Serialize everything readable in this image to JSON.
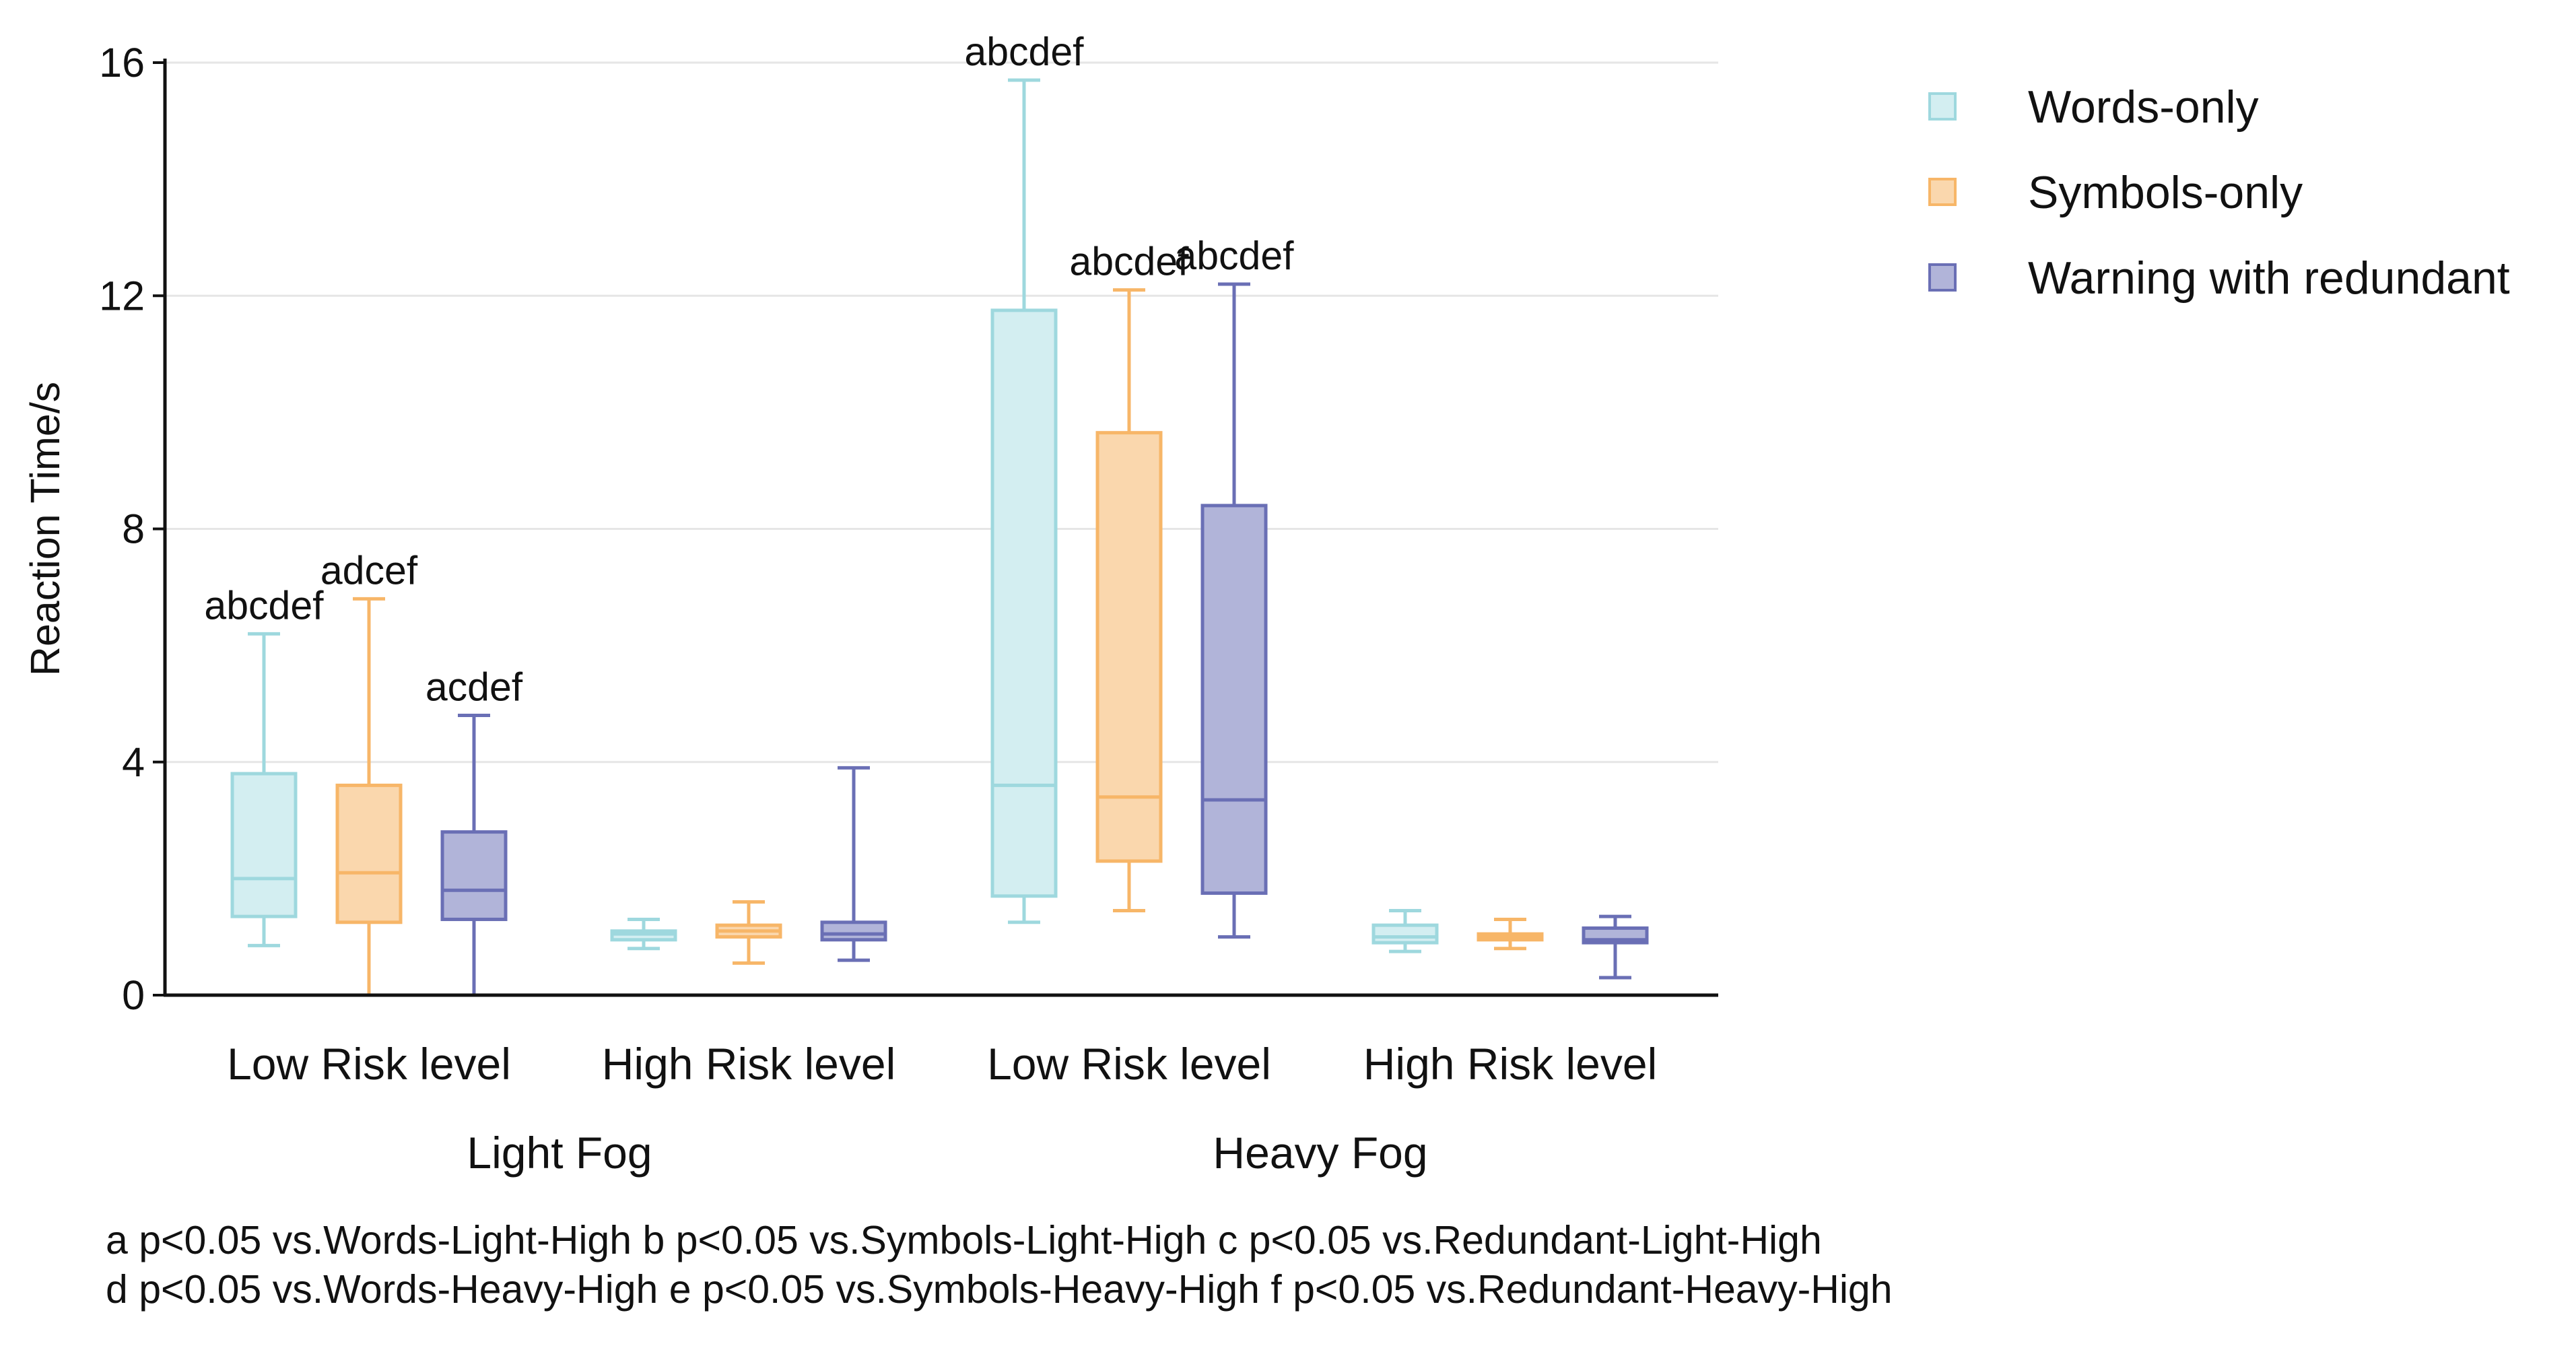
{
  "chart_data": {
    "type": "box",
    "ylabel": "Reaction Time/s",
    "xlabel": "",
    "ylim": [
      0,
      16
    ],
    "yticks": [
      0,
      4,
      8,
      12,
      16
    ],
    "grid": "horizontal",
    "legend_position": "top-right",
    "categories": [
      "Low Risk level",
      "High Risk level",
      "Low Risk level",
      "High Risk level"
    ],
    "groups": [
      {
        "label": "Light Fog",
        "categories": [
          0,
          1
        ]
      },
      {
        "label": "Heavy Fog",
        "categories": [
          2,
          3
        ]
      }
    ],
    "series": [
      {
        "name": "Words-only",
        "stroke": "#9ED8DE",
        "fill": "#D3EEF1",
        "boxes": [
          {
            "min": 0.85,
            "q1": 1.35,
            "median": 2.0,
            "q3": 3.8,
            "max": 6.2,
            "annotation": "abcdef"
          },
          {
            "min": 0.8,
            "q1": 0.95,
            "median": 1.05,
            "q3": 1.1,
            "max": 1.3,
            "annotation": ""
          },
          {
            "min": 1.25,
            "q1": 1.7,
            "median": 3.6,
            "q3": 11.75,
            "max": 15.7,
            "annotation": "abcdef"
          },
          {
            "min": 0.75,
            "q1": 0.9,
            "median": 1.0,
            "q3": 1.2,
            "max": 1.45,
            "annotation": ""
          }
        ]
      },
      {
        "name": "Symbols-only",
        "stroke": "#F7B668",
        "fill": "#FAD7AD",
        "boxes": [
          {
            "min": 0.0,
            "q1": 1.25,
            "median": 2.1,
            "q3": 3.6,
            "max": 6.8,
            "annotation": "adcef"
          },
          {
            "min": 0.55,
            "q1": 1.0,
            "median": 1.1,
            "q3": 1.2,
            "max": 1.6,
            "annotation": ""
          },
          {
            "min": 1.45,
            "q1": 2.3,
            "median": 3.4,
            "q3": 9.65,
            "max": 12.1,
            "annotation": "abcdef"
          },
          {
            "min": 0.8,
            "q1": 0.95,
            "median": 1.0,
            "q3": 1.05,
            "max": 1.3,
            "annotation": ""
          }
        ]
      },
      {
        "name": "Warning with redundant",
        "stroke": "#6A6FB5",
        "fill": "#B1B4D9",
        "boxes": [
          {
            "min": 0.0,
            "q1": 1.3,
            "median": 1.8,
            "q3": 2.8,
            "max": 4.8,
            "annotation": "acdef"
          },
          {
            "min": 0.6,
            "q1": 0.95,
            "median": 1.05,
            "q3": 1.25,
            "max": 3.9,
            "annotation": ""
          },
          {
            "min": 1.0,
            "q1": 1.75,
            "median": 3.35,
            "q3": 8.4,
            "max": 12.2,
            "annotation": "abcdef"
          },
          {
            "min": 0.3,
            "q1": 0.9,
            "median": 0.95,
            "q3": 1.15,
            "max": 1.35,
            "annotation": ""
          }
        ]
      }
    ],
    "footnotes": [
      "a p<0.05 vs.Words-Light-High b p<0.05 vs.Symbols-Light-High c p<0.05 vs.Redundant-Light-High",
      "d p<0.05 vs.Words-Heavy-High e p<0.05 vs.Symbols-Heavy-High f p<0.05 vs.Redundant-Heavy-High"
    ]
  }
}
